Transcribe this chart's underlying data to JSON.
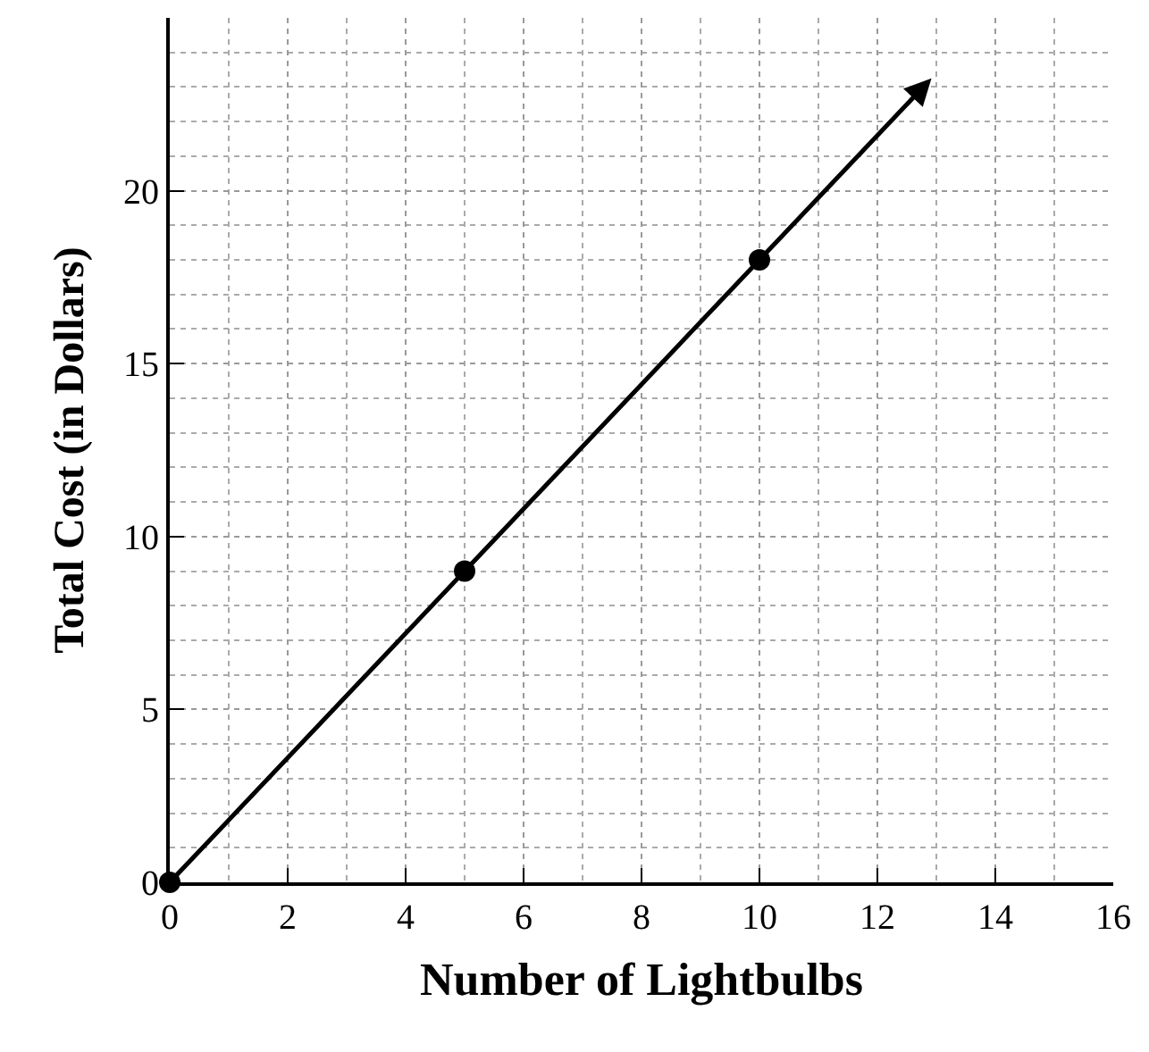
{
  "chart_data": {
    "type": "line",
    "xlabel": "Number of Lightbulbs",
    "ylabel": "Total Cost (in Dollars)",
    "series": [
      {
        "color": "#000000",
        "x": [
          0,
          5,
          10
        ],
        "values": [
          0,
          9,
          18
        ],
        "marker": "circle"
      }
    ],
    "xlim": [
      0,
      16
    ],
    "ylim": [
      0,
      25
    ],
    "xticks": [
      0,
      2,
      4,
      6,
      8,
      10,
      12,
      14,
      16
    ],
    "yticks": [
      0,
      5,
      10,
      15,
      20
    ],
    "grid": true,
    "legend": false
  }
}
